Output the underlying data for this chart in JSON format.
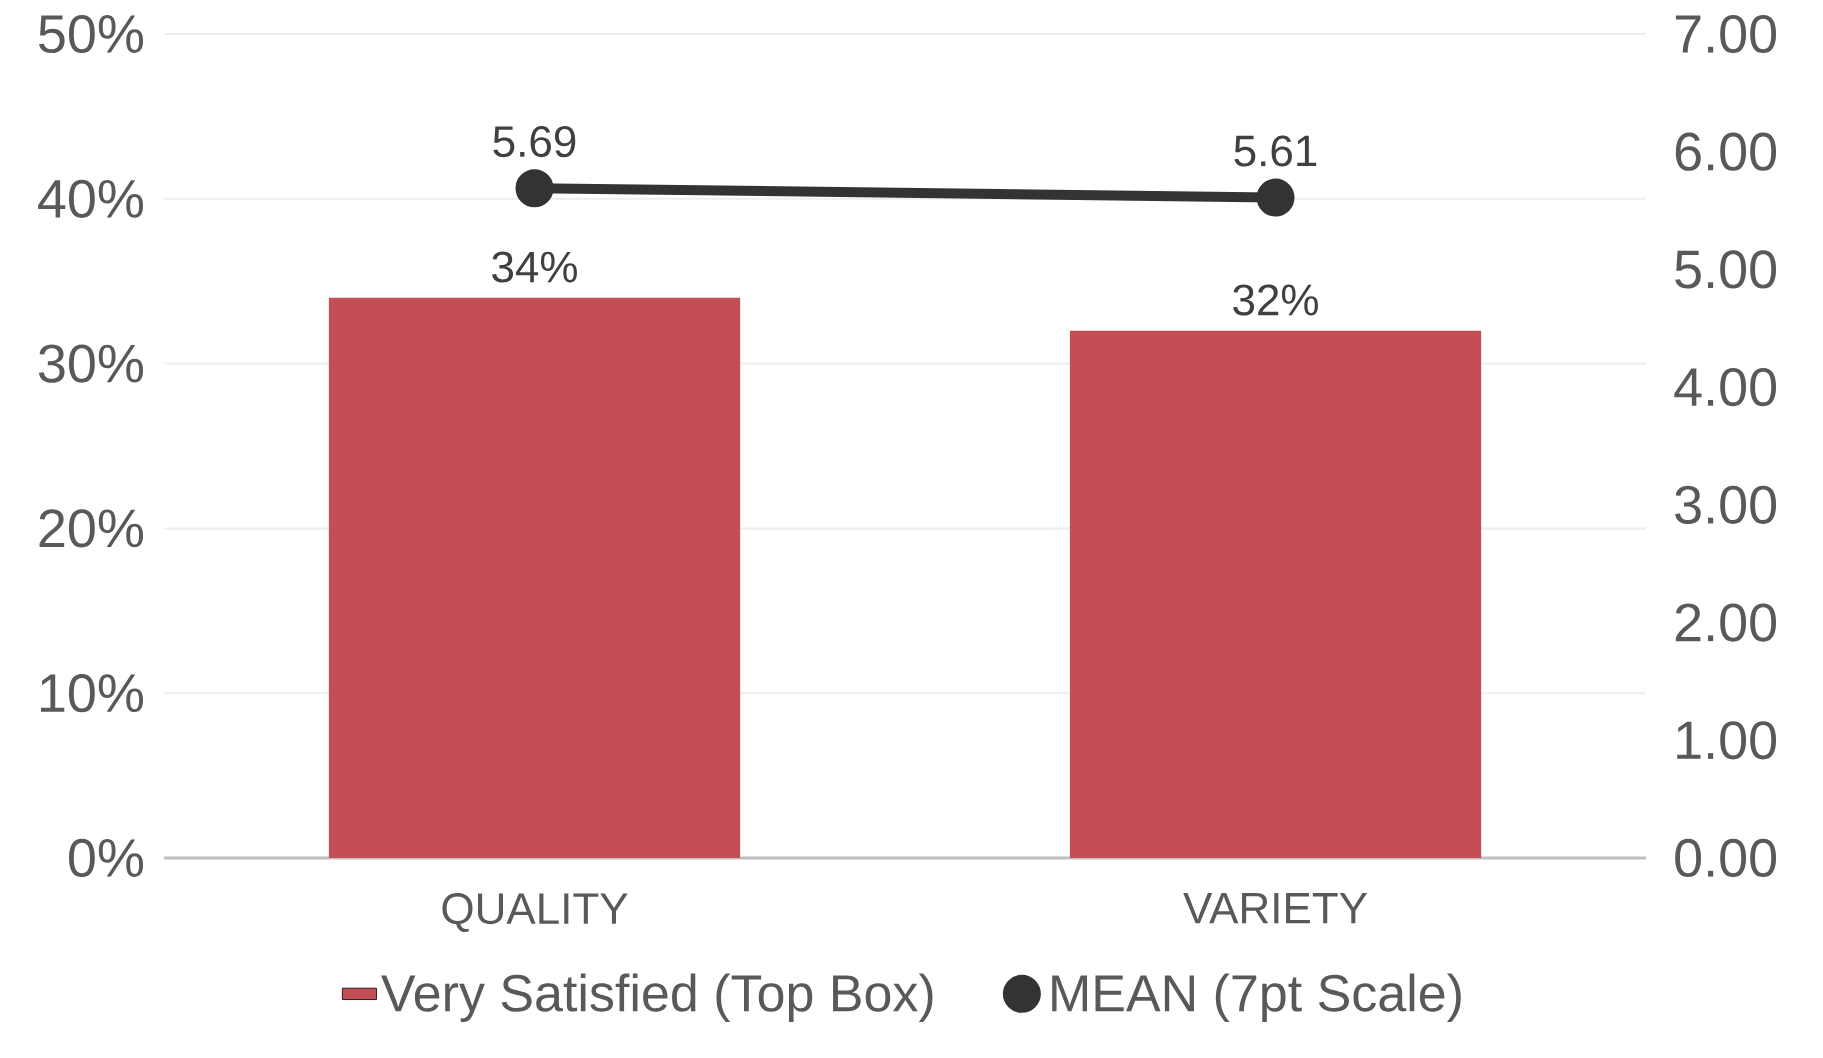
{
  "chart_data": {
    "type": "bar",
    "categories": [
      "QUALITY",
      "VARIETY"
    ],
    "series": [
      {
        "name": "Very Satisfied (Top Box)",
        "color": "#c44e55",
        "values": [
          34,
          32
        ],
        "value_labels": [
          "34%",
          "32%"
        ]
      },
      {
        "name": "MEAN (7pt Scale)",
        "type": "line",
        "axis": "y2",
        "color": "#333333",
        "marker": "circle",
        "values": [
          5.69,
          5.61
        ],
        "value_labels": [
          "5.69",
          "5.61"
        ]
      }
    ],
    "ylim": [
      0,
      50
    ],
    "yticks": [
      {
        "value": 0,
        "label": "0%"
      },
      {
        "value": 10,
        "label": "10%"
      },
      {
        "value": 20,
        "label": "20%"
      },
      {
        "value": 30,
        "label": "30%"
      },
      {
        "value": 40,
        "label": "40%"
      },
      {
        "value": 50,
        "label": "50%"
      }
    ],
    "y2lim": [
      0,
      7
    ],
    "y2ticks": [
      {
        "value": 0,
        "label": "0.00"
      },
      {
        "value": 1,
        "label": "1.00"
      },
      {
        "value": 2,
        "label": "2.00"
      },
      {
        "value": 3,
        "label": "3.00"
      },
      {
        "value": 4,
        "label": "4.00"
      },
      {
        "value": 5,
        "label": "5.00"
      },
      {
        "value": 6,
        "label": "6.00"
      },
      {
        "value": 7,
        "label": "7.00"
      }
    ],
    "grid": "y",
    "legend": "bottom"
  }
}
